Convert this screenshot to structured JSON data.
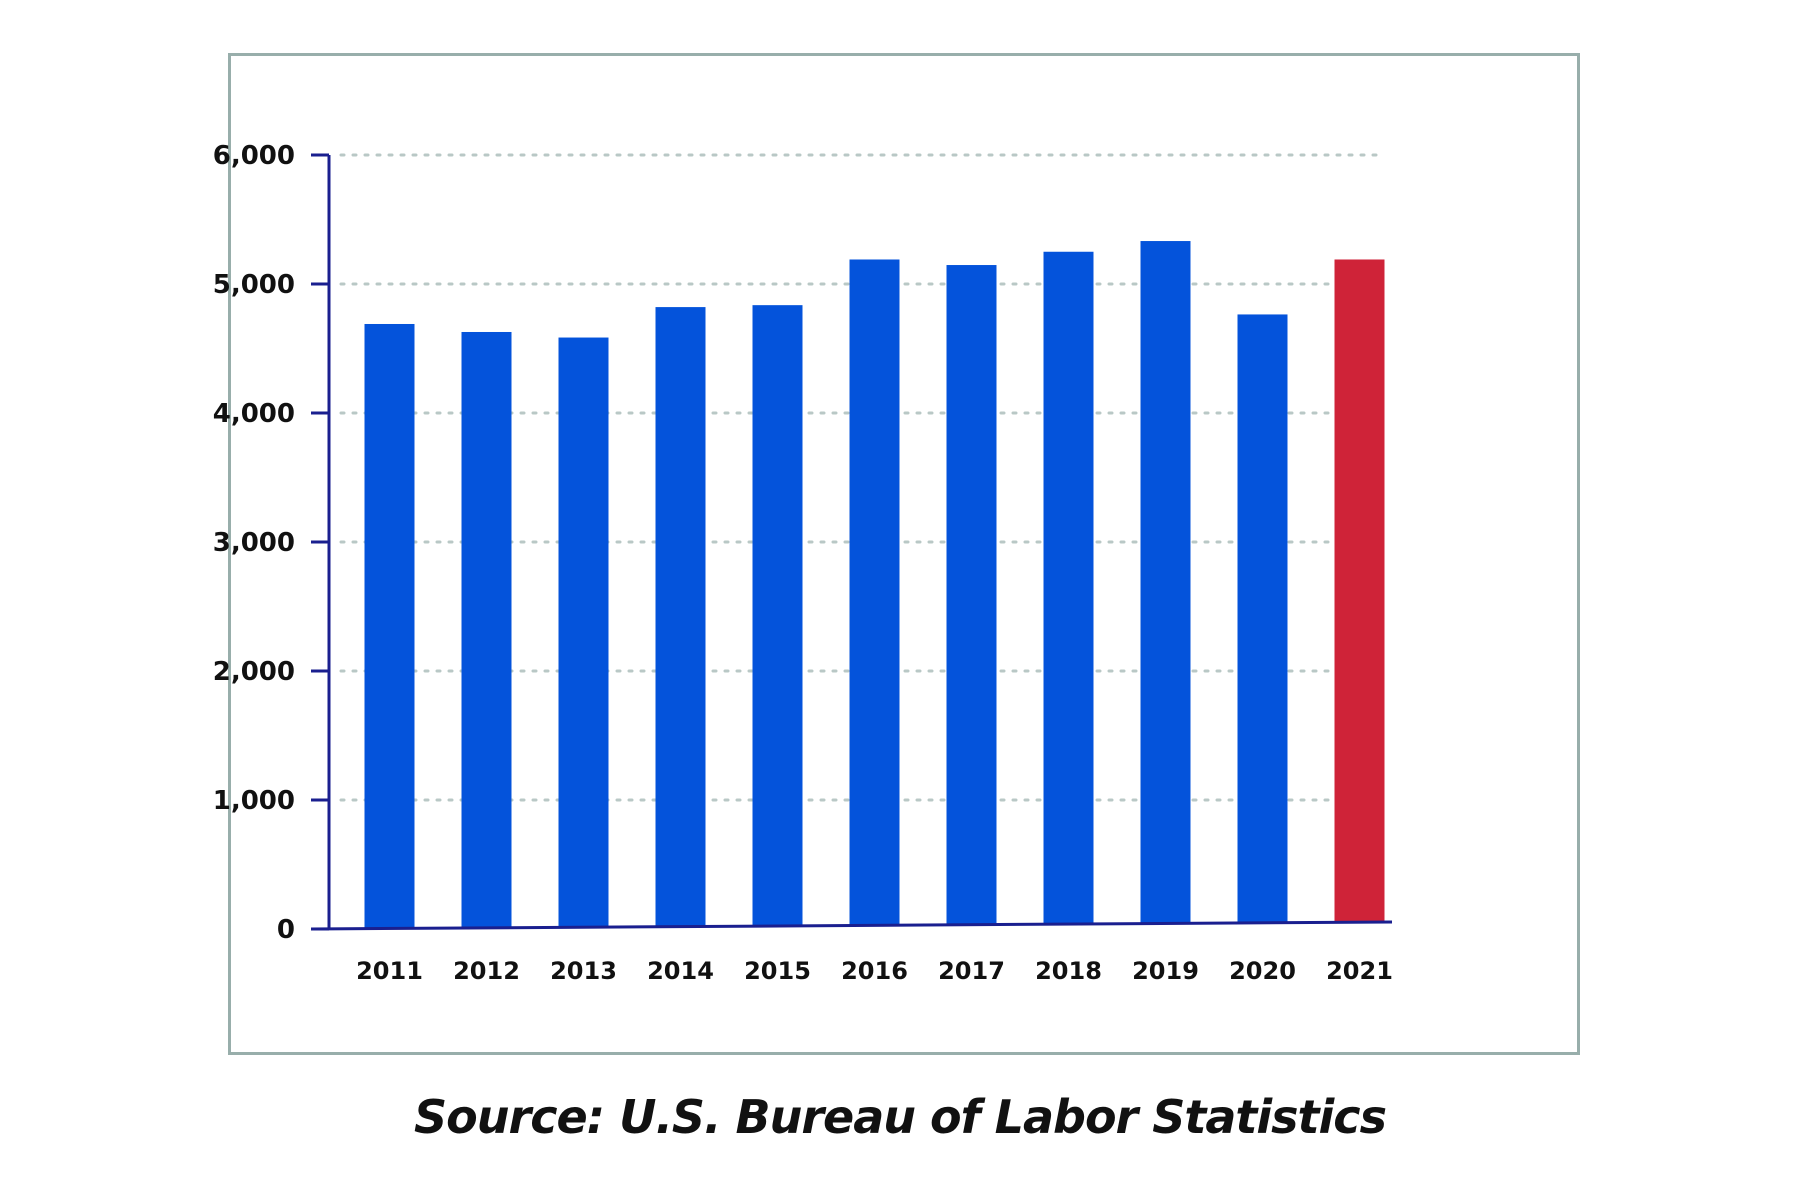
{
  "chart_data": {
    "type": "bar",
    "categories": [
      "2011",
      "2012",
      "2013",
      "2014",
      "2015",
      "2016",
      "2017",
      "2018",
      "2019",
      "2020",
      "2021"
    ],
    "values": [
      4690,
      4628,
      4585,
      4821,
      4836,
      5190,
      5147,
      5250,
      5333,
      4764,
      5190
    ],
    "bar_colors": [
      "#0453db",
      "#0453db",
      "#0453db",
      "#0453db",
      "#0453db",
      "#0453db",
      "#0453db",
      "#0453db",
      "#0453db",
      "#0453db",
      "#cf2338"
    ],
    "title": "",
    "xlabel": "",
    "ylabel": "",
    "ylim": [
      0,
      6000
    ],
    "yticks": [
      0,
      1000,
      2000,
      3000,
      4000,
      5000,
      6000
    ],
    "ytick_labels": [
      "0",
      "1,000",
      "2,000",
      "3,000",
      "4,000",
      "5,000",
      "6,000"
    ],
    "grid": true,
    "legend": "none",
    "axis_color": "#1a1f8f",
    "grid_color": "#b9c8c6"
  },
  "caption": {
    "source": "Source: U.S. Bureau of Labor Statistics"
  }
}
